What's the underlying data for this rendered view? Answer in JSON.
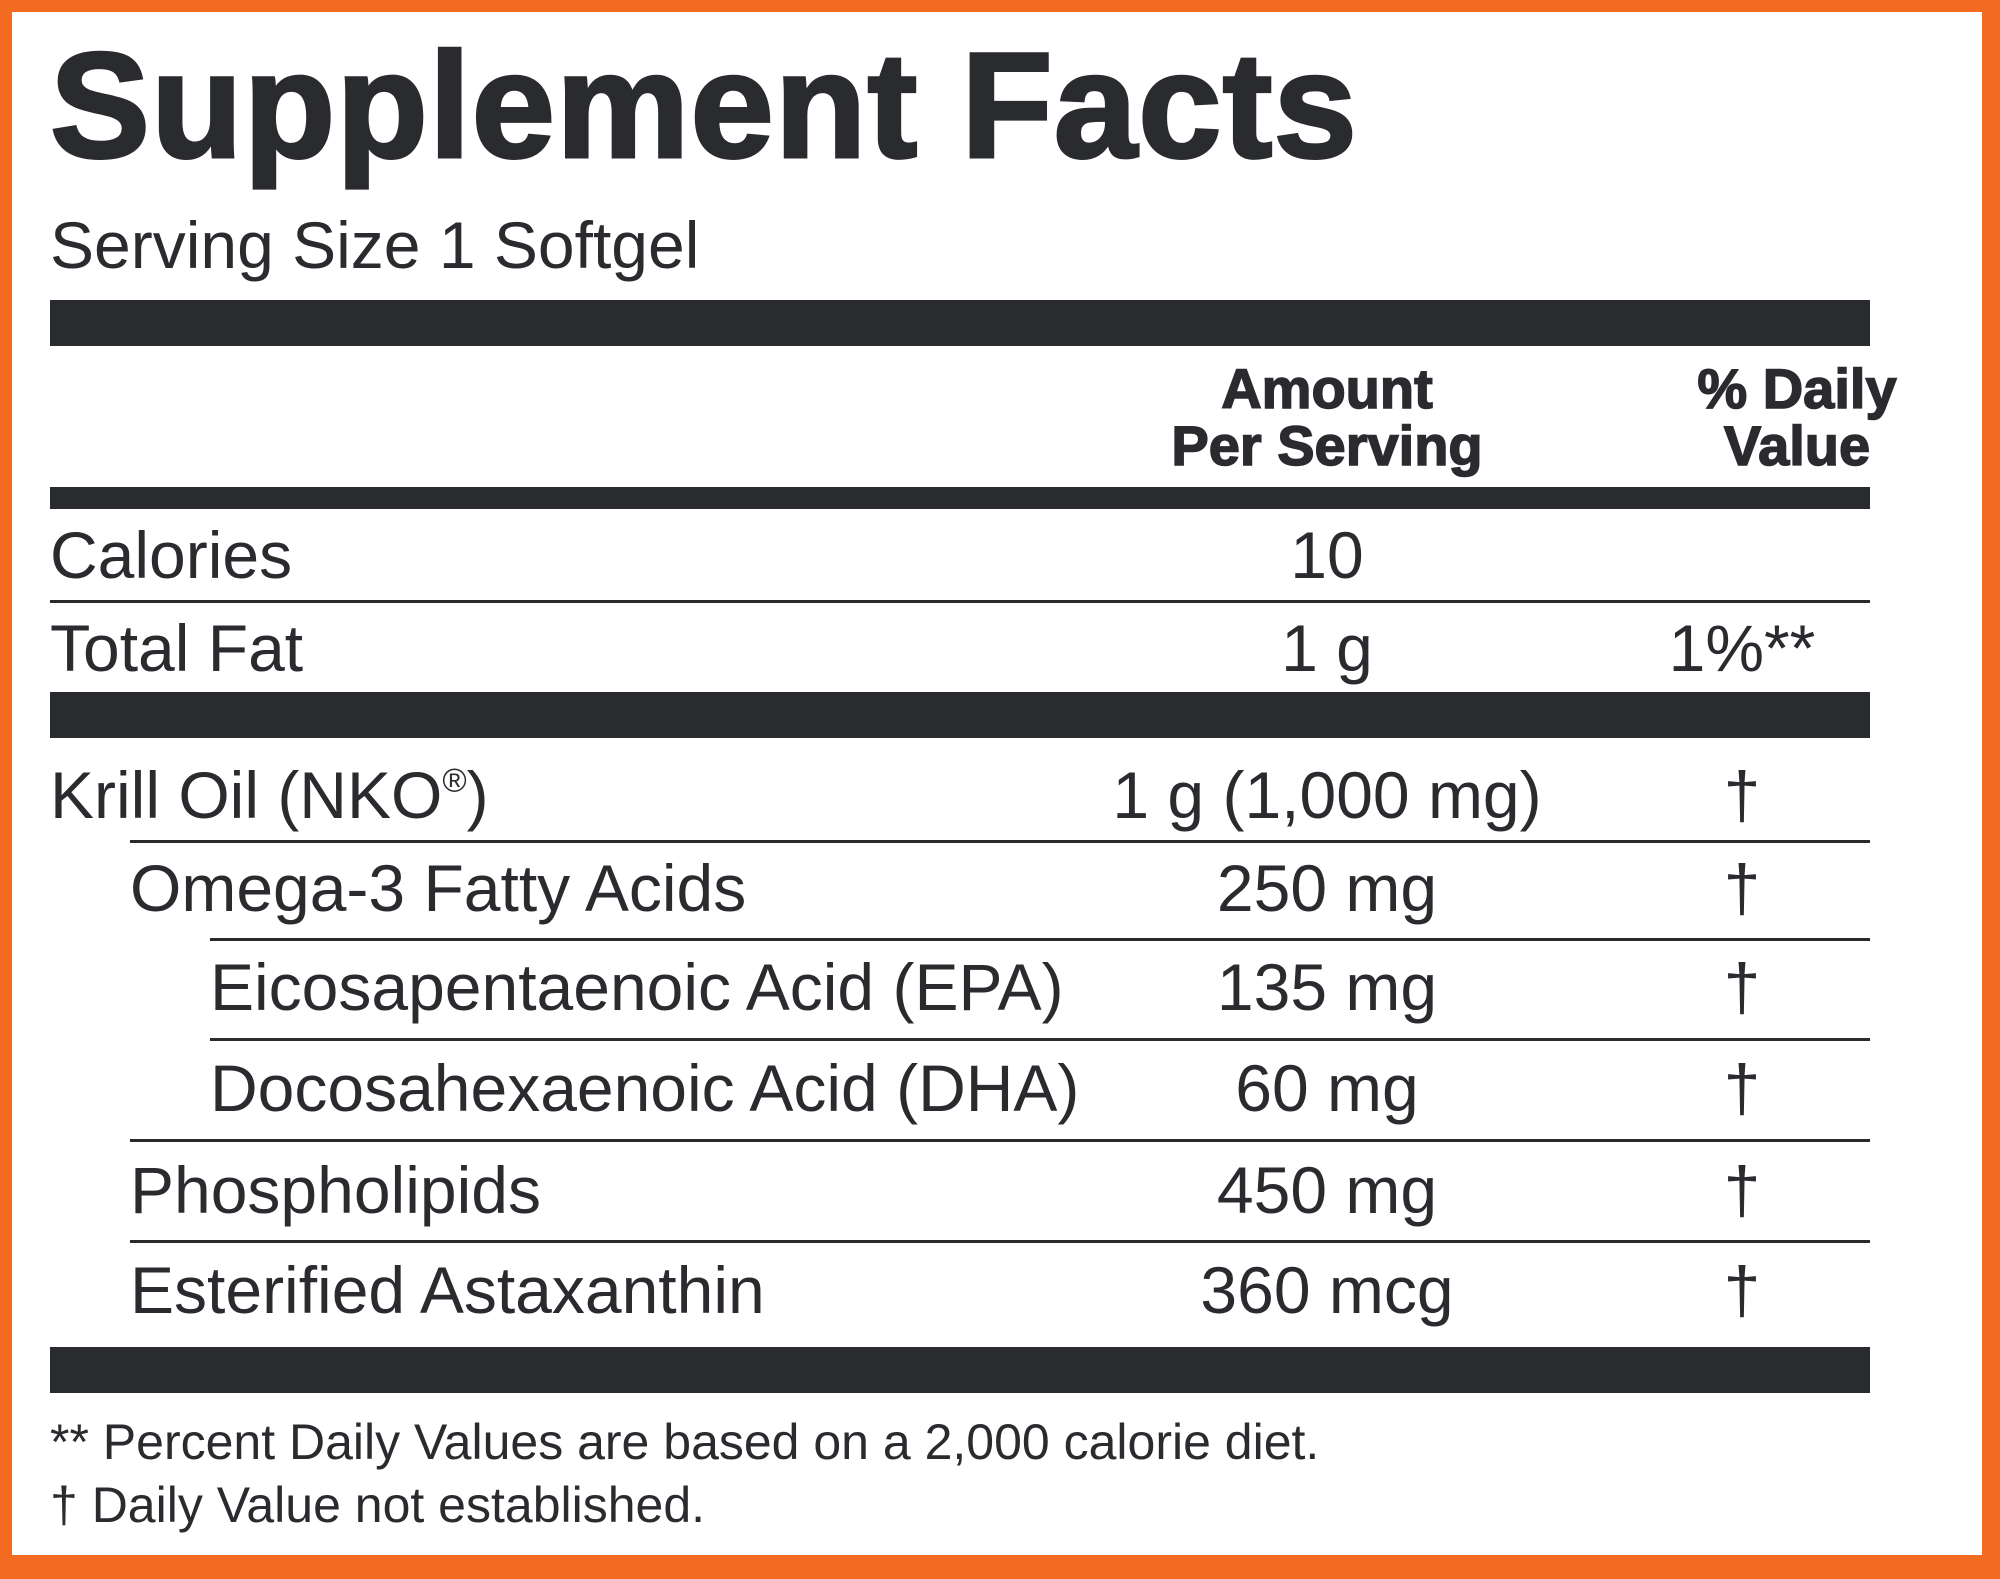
{
  "title": "Supplement Facts",
  "serving_size": "Serving Size 1 Softgel",
  "header": {
    "amount_line1": "Amount",
    "amount_line2": "Per Serving",
    "dv_line1": "% Daily",
    "dv_line2": "Value"
  },
  "rows": [
    {
      "name": "Calories",
      "amount": "10",
      "dv": ""
    },
    {
      "name": "Total Fat",
      "amount": "1 g",
      "dv": "1%**"
    },
    {
      "name": "Krill Oil (NKO",
      "name_sup": "®",
      "name_suffix": ")",
      "amount": "1 g (1,000 mg)",
      "dv": "†"
    },
    {
      "name": "Omega-3 Fatty Acids",
      "amount": "250 mg",
      "dv": "†"
    },
    {
      "name": "Eicosapentaenoic Acid (EPA)",
      "amount": "135 mg",
      "dv": "†"
    },
    {
      "name": "Docosahexaenoic Acid (DHA)",
      "amount": "60 mg",
      "dv": "†"
    },
    {
      "name": "Phospholipids",
      "amount": "450 mg",
      "dv": "†"
    },
    {
      "name": "Esterified Astaxanthin",
      "amount": "360 mcg",
      "dv": "†"
    }
  ],
  "footnotes": [
    "** Percent Daily Values are based on a 2,000 calorie diet.",
    "† Daily Value not established."
  ],
  "colors": {
    "border": "#f26b21",
    "ink": "#2a2b2f",
    "background": "#ffffff"
  }
}
